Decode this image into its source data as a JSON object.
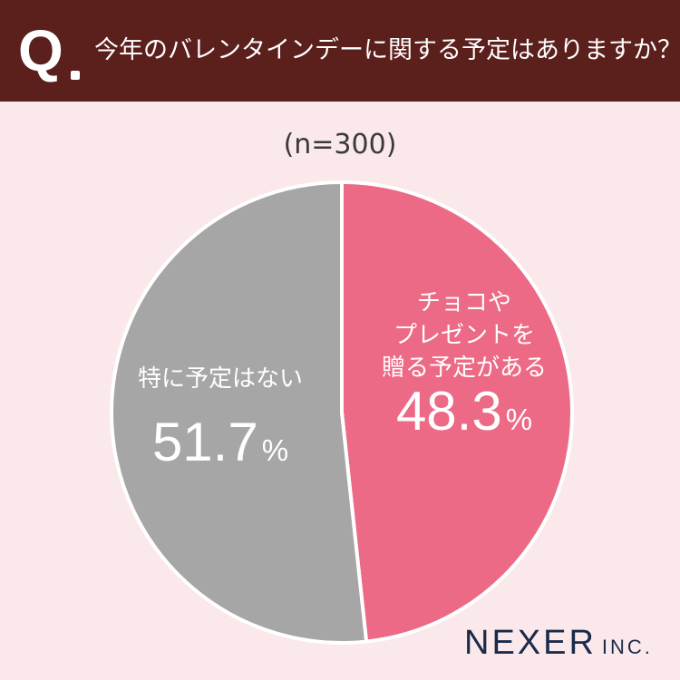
{
  "header": {
    "q_label": "Q",
    "question": "今年のバレンタインデーに関する予定はありますか？"
  },
  "sample_size": "(n=300)",
  "colors": {
    "header_bg": "#5b1f1c",
    "page_bg": "#fbe8ea",
    "slice_yes": "#ec6a85",
    "slice_no": "#a6a6a6"
  },
  "chart_data": {
    "type": "pie",
    "start": "12 o'clock, clockwise",
    "slices": [
      {
        "label_lines": [
          "チョコや",
          "プレゼントを",
          "贈る予定がある"
        ],
        "value": 48.3,
        "value_text": "48.3",
        "unit": "%",
        "color": "#ec6a85"
      },
      {
        "label_lines": [
          "特に予定はない"
        ],
        "value": 51.7,
        "value_text": "51.7",
        "unit": "%",
        "color": "#a6a6a6"
      }
    ]
  },
  "logo": {
    "main": "NEXER",
    "sub": "INC."
  }
}
